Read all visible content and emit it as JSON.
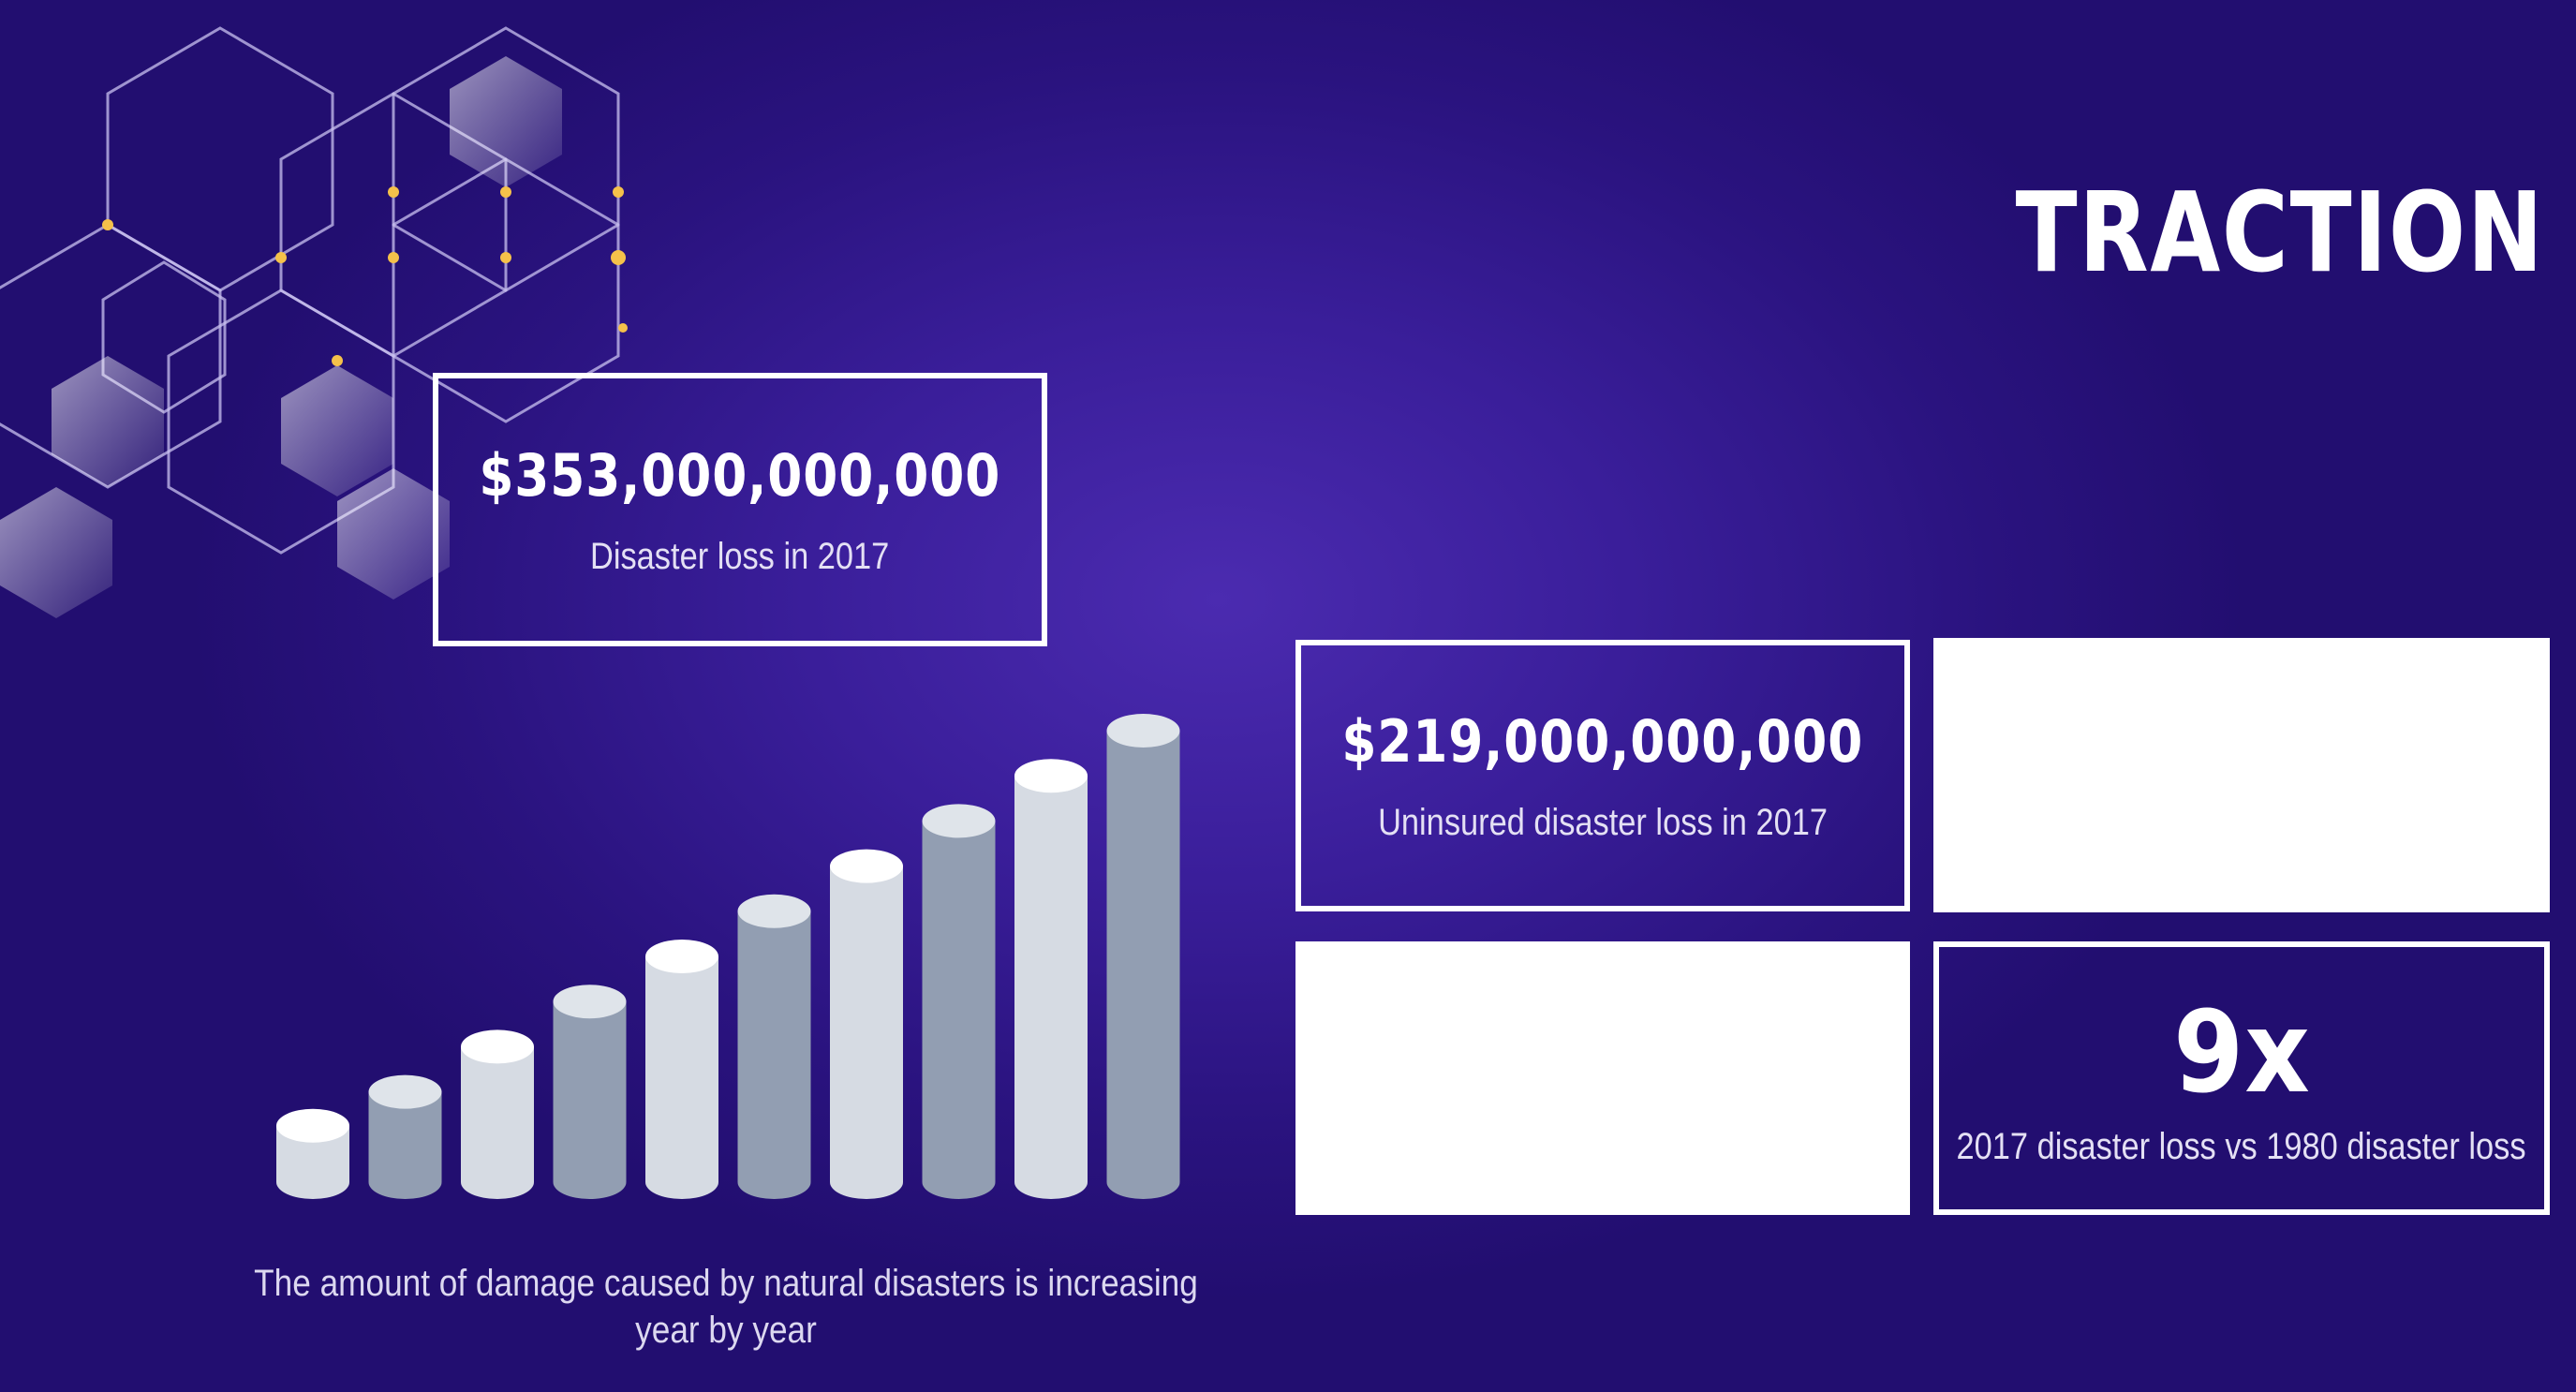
{
  "slide": {
    "title": "TRACTION",
    "caption": "The amount of damage caused by natural disasters is increasing year by year"
  },
  "stats": {
    "total_loss": {
      "value": "$353,000,000,000",
      "label": "Disaster loss in 2017"
    },
    "uninsured_loss": {
      "value": "$219,000,000,000",
      "label": "Uninsured disaster loss in 2017"
    },
    "multiplier": {
      "value": "9x",
      "label": "2017 disaster loss vs 1980 disaster loss"
    }
  },
  "colors": {
    "background": "#2f1a8c",
    "box_border": "#ffffff",
    "bar_light": "#d6dbe3",
    "bar_dark": "#929eb2",
    "accent_dot": "#f5c14a"
  },
  "chart_data": {
    "type": "bar",
    "style": "cylinder",
    "values": [
      1,
      2,
      3,
      4,
      5,
      6,
      7,
      8,
      9,
      10
    ],
    "ylim": [
      0,
      10
    ]
  }
}
